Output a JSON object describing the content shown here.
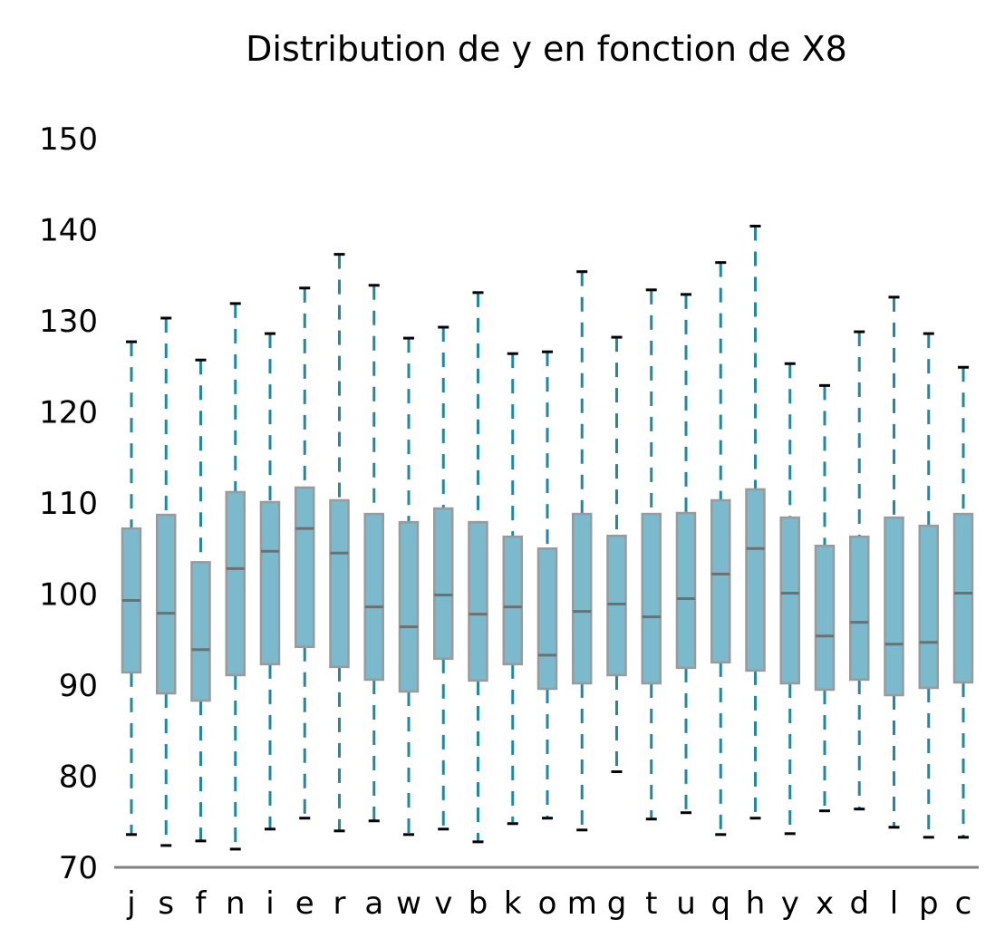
{
  "chart_data": {
    "type": "box",
    "title": "Distribution de y en fonction de X8",
    "xlabel": "",
    "ylabel": "",
    "ylim": [
      70,
      150
    ],
    "yticks": [
      70,
      80,
      90,
      100,
      110,
      120,
      130,
      140,
      150
    ],
    "grid": false,
    "colors": {
      "box_fill": "#7abacc",
      "box_edge": "#9a9a9a",
      "whisker": "#1c8aa5",
      "cap": "#000000",
      "median": "#6f6f6f",
      "axis": "#808080"
    },
    "categories": [
      "j",
      "s",
      "f",
      "n",
      "i",
      "e",
      "r",
      "a",
      "w",
      "v",
      "b",
      "k",
      "o",
      "m",
      "g",
      "t",
      "u",
      "q",
      "h",
      "y",
      "x",
      "d",
      "l",
      "p",
      "c"
    ],
    "boxes": [
      {
        "whislo": 73.6,
        "q1": 91.4,
        "med": 99.3,
        "q3": 107.2,
        "whishi": 127.7
      },
      {
        "whislo": 72.4,
        "q1": 89.1,
        "med": 97.9,
        "q3": 108.7,
        "whishi": 130.3
      },
      {
        "whislo": 72.9,
        "q1": 88.3,
        "med": 93.9,
        "q3": 103.5,
        "whishi": 125.7
      },
      {
        "whislo": 72.0,
        "q1": 91.1,
        "med": 102.8,
        "q3": 111.2,
        "whishi": 131.9
      },
      {
        "whislo": 74.2,
        "q1": 92.3,
        "med": 104.7,
        "q3": 110.1,
        "whishi": 128.6
      },
      {
        "whislo": 75.4,
        "q1": 94.2,
        "med": 107.2,
        "q3": 111.7,
        "whishi": 133.6
      },
      {
        "whislo": 74.0,
        "q1": 92.0,
        "med": 104.5,
        "q3": 110.3,
        "whishi": 137.3
      },
      {
        "whislo": 75.1,
        "q1": 90.6,
        "med": 98.6,
        "q3": 108.8,
        "whishi": 133.9
      },
      {
        "whislo": 73.6,
        "q1": 89.3,
        "med": 96.4,
        "q3": 107.9,
        "whishi": 128.1
      },
      {
        "whislo": 74.2,
        "q1": 92.9,
        "med": 99.9,
        "q3": 109.4,
        "whishi": 129.3
      },
      {
        "whislo": 72.8,
        "q1": 90.5,
        "med": 97.8,
        "q3": 107.9,
        "whishi": 133.1
      },
      {
        "whislo": 74.8,
        "q1": 92.3,
        "med": 98.6,
        "q3": 106.3,
        "whishi": 126.4
      },
      {
        "whislo": 75.4,
        "q1": 89.6,
        "med": 93.3,
        "q3": 105.0,
        "whishi": 126.6
      },
      {
        "whislo": 74.1,
        "q1": 90.2,
        "med": 98.1,
        "q3": 108.8,
        "whishi": 135.4
      },
      {
        "whislo": 80.5,
        "q1": 91.1,
        "med": 98.9,
        "q3": 106.4,
        "whishi": 128.2
      },
      {
        "whislo": 75.3,
        "q1": 90.2,
        "med": 97.5,
        "q3": 108.8,
        "whishi": 133.4
      },
      {
        "whislo": 76.0,
        "q1": 91.9,
        "med": 99.5,
        "q3": 108.9,
        "whishi": 132.9
      },
      {
        "whislo": 73.6,
        "q1": 92.5,
        "med": 102.2,
        "q3": 110.3,
        "whishi": 136.4
      },
      {
        "whislo": 75.4,
        "q1": 91.6,
        "med": 105.0,
        "q3": 111.5,
        "whishi": 140.4
      },
      {
        "whislo": 73.7,
        "q1": 90.2,
        "med": 100.1,
        "q3": 108.4,
        "whishi": 125.3
      },
      {
        "whislo": 76.2,
        "q1": 89.5,
        "med": 95.4,
        "q3": 105.3,
        "whishi": 122.9
      },
      {
        "whislo": 76.4,
        "q1": 90.6,
        "med": 96.9,
        "q3": 106.3,
        "whishi": 128.8
      },
      {
        "whislo": 74.4,
        "q1": 88.9,
        "med": 94.5,
        "q3": 108.4,
        "whishi": 132.6
      },
      {
        "whislo": 73.3,
        "q1": 89.7,
        "med": 94.7,
        "q3": 107.5,
        "whishi": 128.6
      },
      {
        "whislo": 73.3,
        "q1": 90.3,
        "med": 100.1,
        "q3": 108.8,
        "whishi": 124.9
      }
    ]
  }
}
